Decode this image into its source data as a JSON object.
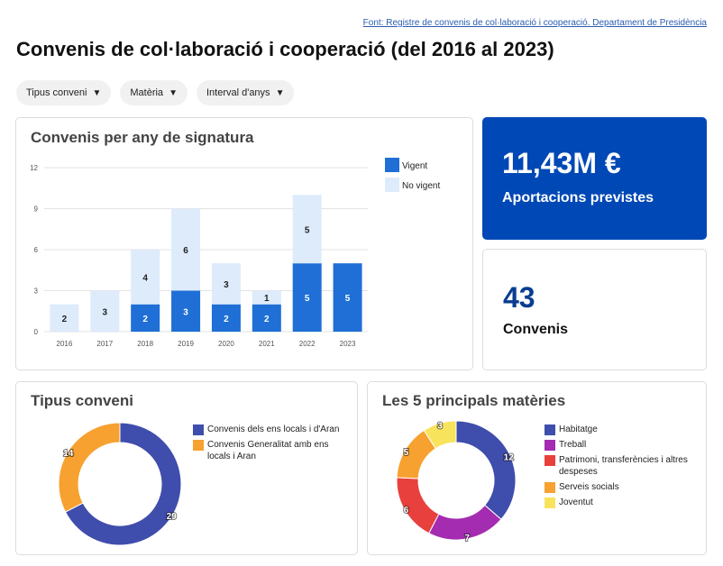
{
  "header": {
    "source": "Font: Registre de convenis de col·laboració i cooperació. Departament de Presidència",
    "title": "Convenis de col·laboració i cooperació (del 2016 al 2023)"
  },
  "filters": [
    "Tipus conveni",
    "Matèria",
    "Interval d'anys"
  ],
  "kpis": {
    "amount": {
      "value": "11,43M €",
      "label": "Aportacions previstes"
    },
    "count": {
      "value": "43",
      "label": "Convenis"
    }
  },
  "colors": {
    "vigent": "#1f6fd6",
    "no_vigent": "#ddebfb",
    "kpi_blue": "#0048b5",
    "count_value": "#0a3d91"
  },
  "chart_data": [
    {
      "type": "bar",
      "title": "Convenis per any de signatura",
      "categories": [
        "2016",
        "2017",
        "2018",
        "2019",
        "2020",
        "2021",
        "2022",
        "2023"
      ],
      "stacked": true,
      "series": [
        {
          "name": "Vigent",
          "color": "#1f6fd6",
          "values": [
            0,
            0,
            2,
            3,
            2,
            2,
            5,
            5
          ]
        },
        {
          "name": "No vigent",
          "color": "#ddebfb",
          "values": [
            2,
            3,
            4,
            6,
            3,
            1,
            5,
            0
          ]
        }
      ],
      "yticks": [
        "0",
        "3",
        "6",
        "9",
        "12"
      ],
      "ylim": [
        0,
        12
      ],
      "grid": true,
      "legend": "right"
    },
    {
      "type": "pie",
      "donut": true,
      "title": "Tipus conveni",
      "slices": [
        {
          "label": "Convenis dels ens locals i d'Aran",
          "value": 29,
          "color": "#3f4dac"
        },
        {
          "label": "Convenis Generalitat amb ens locals i Aran",
          "value": 14,
          "color": "#f7a130"
        }
      ],
      "legend": "right"
    },
    {
      "type": "pie",
      "donut": true,
      "title": "Les 5 principals matèries",
      "slices": [
        {
          "label": "Habitatge",
          "value": 12,
          "color": "#3f4dac"
        },
        {
          "label": "Treball",
          "value": 7,
          "color": "#a32cb0"
        },
        {
          "label": "Patrimoni, transferències i altres despeses",
          "value": 6,
          "color": "#e8403d"
        },
        {
          "label": "Serveis socials",
          "value": 5,
          "color": "#f7a130"
        },
        {
          "label": "Joventut",
          "value": 3,
          "color": "#f8e35d"
        }
      ],
      "legend": "right"
    }
  ]
}
